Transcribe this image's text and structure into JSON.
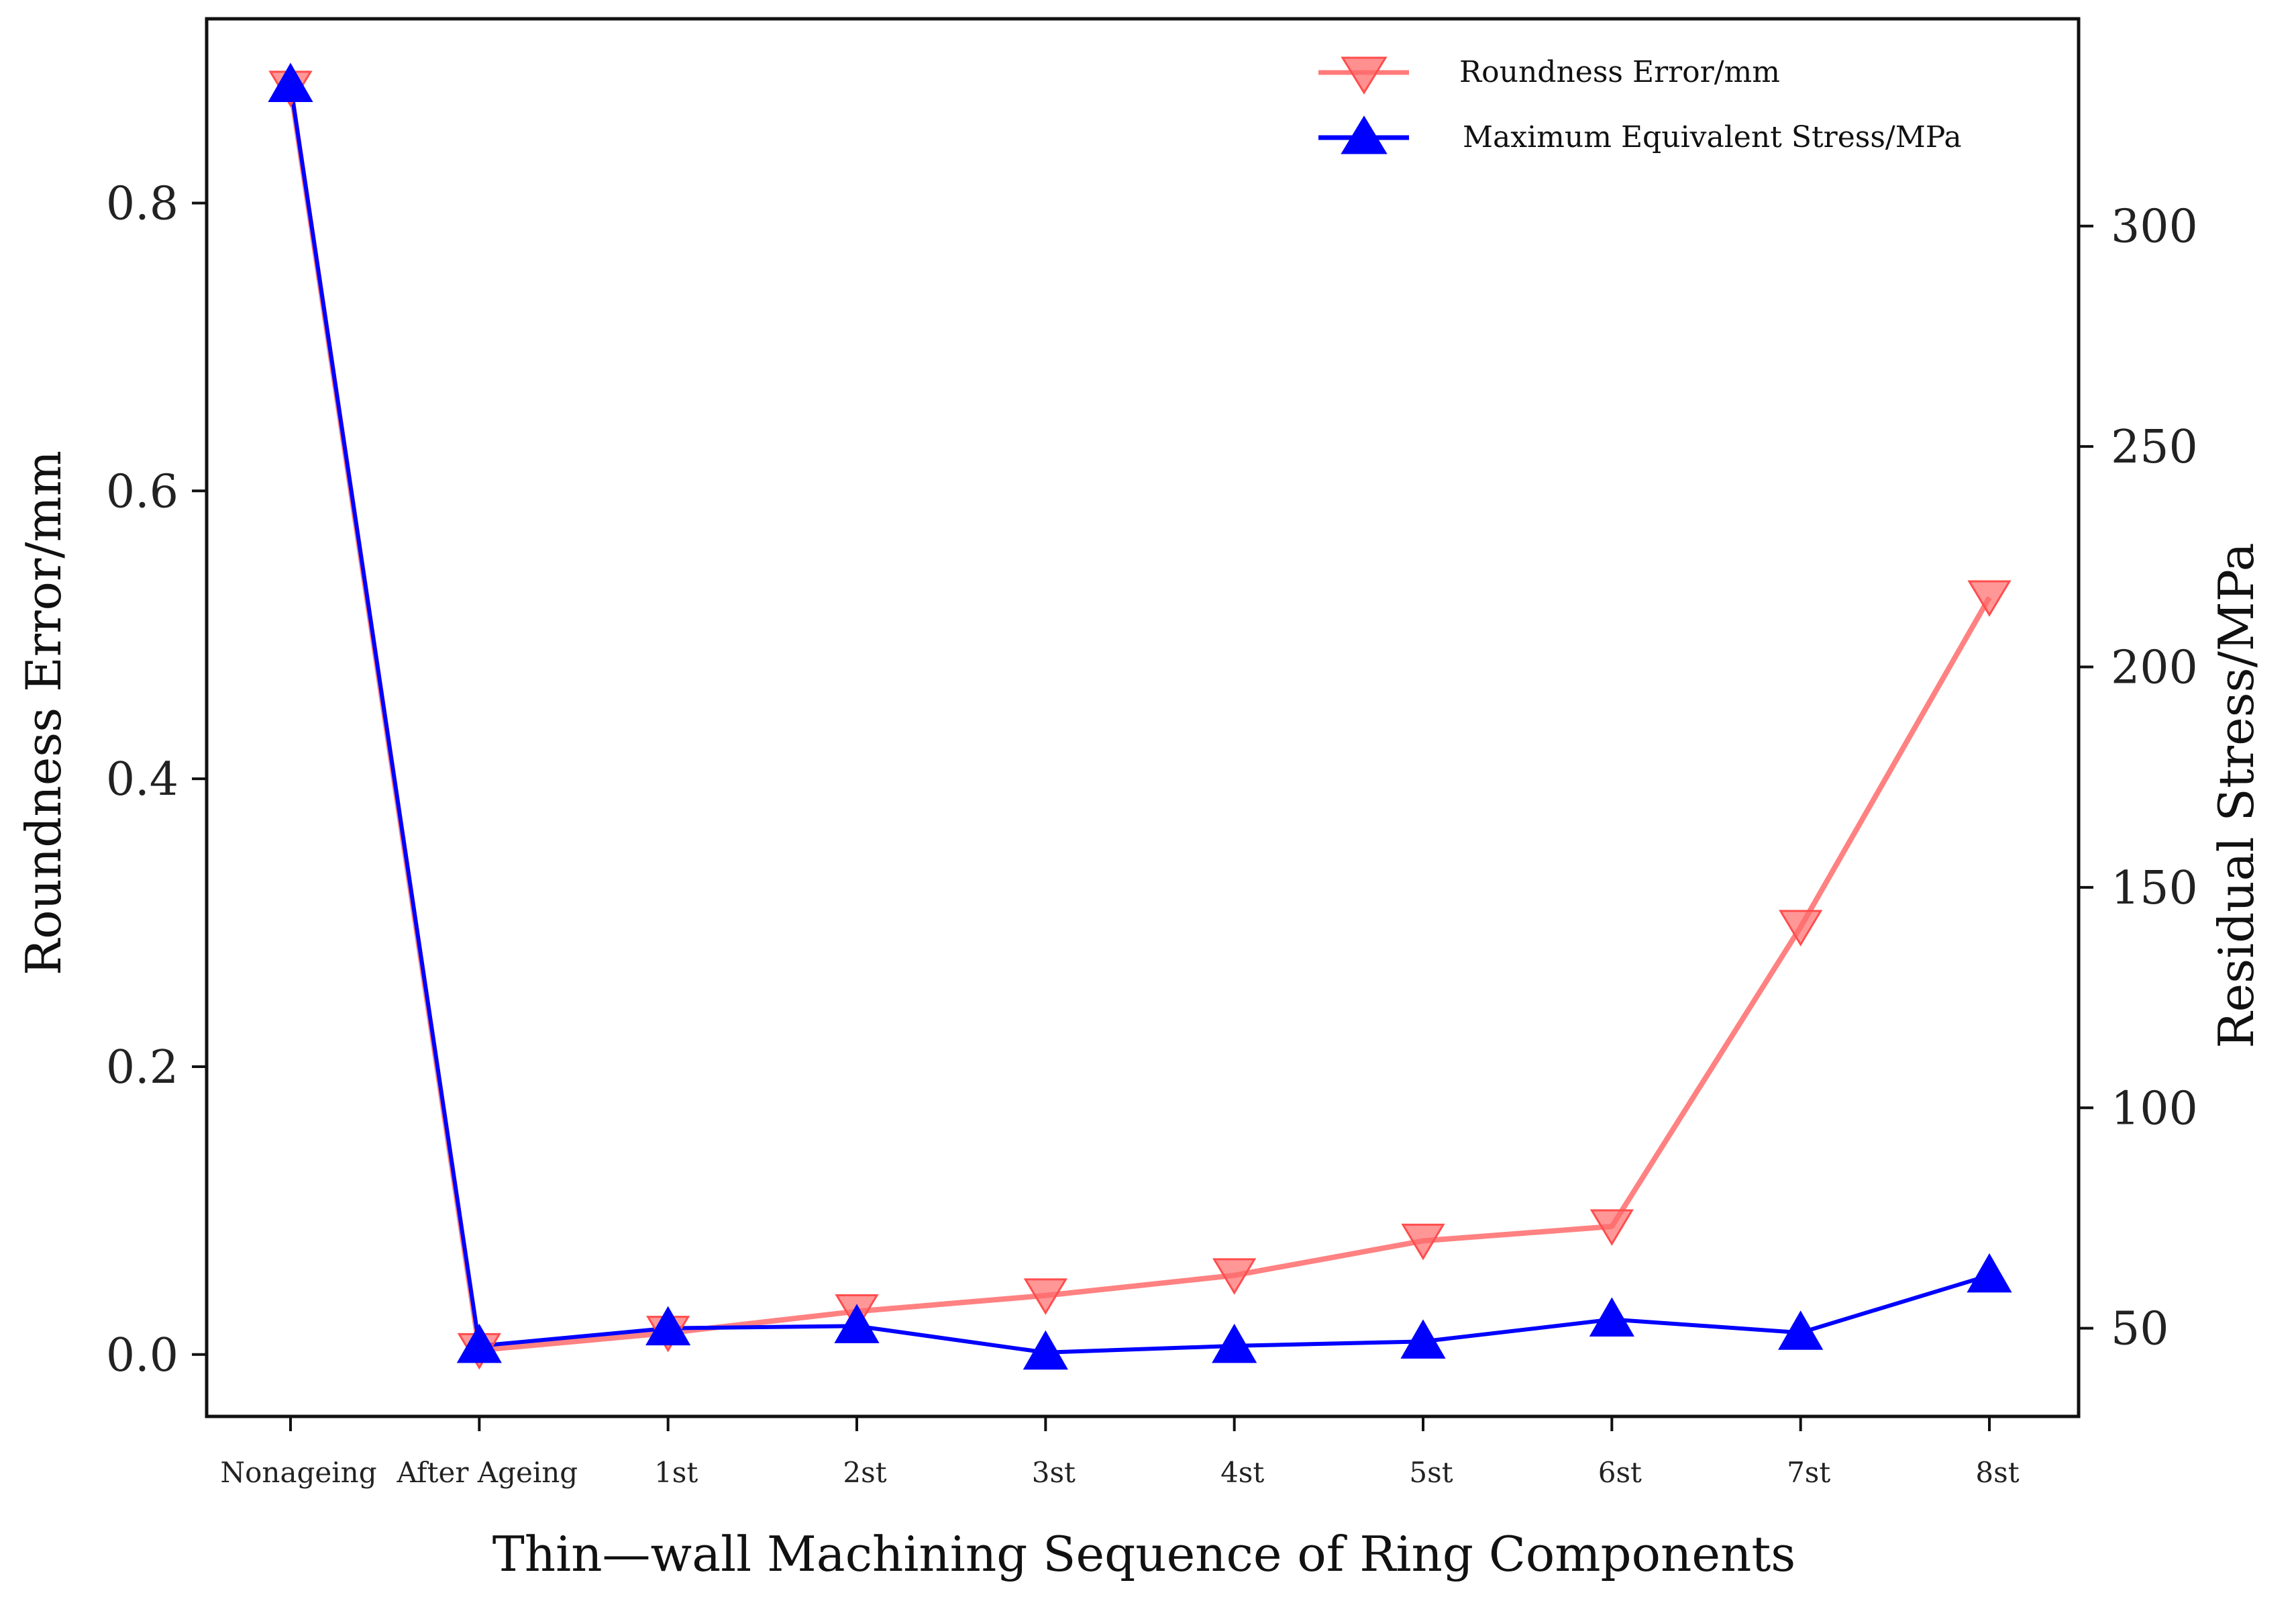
{
  "chart_data": {
    "type": "line",
    "title": "",
    "xlabel": "Thin—wall Machining Sequence of Ring Components",
    "ylabel_left": "Roundness Error/mm",
    "ylabel_right": "Residual Stress/MPa",
    "categories": [
      "Nonageing",
      "After Ageing",
      "1st",
      "2st",
      "3st",
      "4st",
      "5st",
      "6st",
      "7st",
      "8st"
    ],
    "ylim_left": [
      -0.043,
      0.928
    ],
    "yticks_left": [
      "0.0",
      "0.2",
      "0.4",
      "0.6",
      "0.8"
    ],
    "yticks_left_values": [
      0,
      0.2,
      0.4,
      0.6,
      0.8
    ],
    "ylim_right": [
      30,
      347
    ],
    "yticks_right": [
      "50",
      "100",
      "150",
      "200",
      "250",
      "300"
    ],
    "yticks_right_values": [
      50,
      100,
      150,
      200,
      250,
      300
    ],
    "grid": false,
    "legend_position": "top-right",
    "series": [
      {
        "name": "Roundness Error/mm",
        "axis": "left",
        "marker": "triangle-down",
        "color": "#ff6b6b",
        "values": [
          0.88,
          0.003,
          0.015,
          0.03,
          0.041,
          0.055,
          0.079,
          0.089,
          0.297,
          0.526
        ]
      },
      {
        "name": "Maximum Equivalent Stress/MPa",
        "axis": "right",
        "marker": "triangle-up",
        "color": "#0000ff",
        "values": [
          332,
          46,
          50,
          50.5,
          44.5,
          46,
          47,
          52,
          49,
          62
        ]
      }
    ]
  }
}
